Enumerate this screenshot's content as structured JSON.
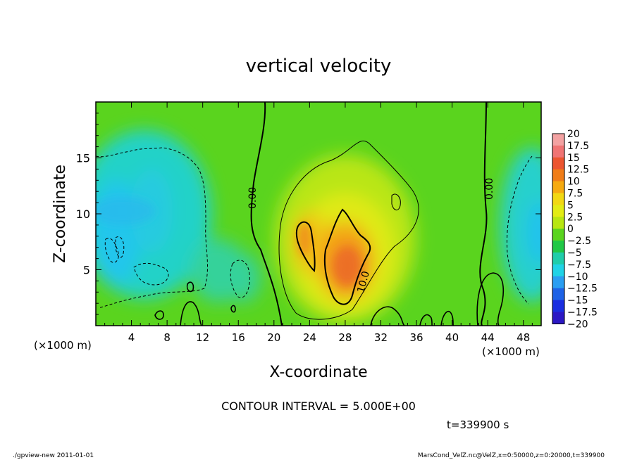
{
  "chart_data": {
    "type": "heatmap",
    "title": "vertical velocity",
    "xlabel": "X-coordinate",
    "ylabel": "Z-coordinate",
    "x_unit_label": "(×1000 m)",
    "xlim": [
      0,
      50
    ],
    "ylim": [
      0,
      20
    ],
    "x_ticks": [
      4,
      8,
      12,
      16,
      20,
      24,
      28,
      32,
      36,
      40,
      44,
      48
    ],
    "y_ticks": [
      5,
      10,
      15
    ],
    "colorbar": {
      "labels": [
        "20",
        "17.5",
        "15",
        "12.5",
        "10",
        "7.5",
        "5",
        "2.5",
        "0",
        "−2.5",
        "−5",
        "−7.5",
        "−10",
        "−12.5",
        "−15",
        "−17.5",
        "−20"
      ],
      "colors": [
        "#f3a2a2",
        "#f07474",
        "#ec5530",
        "#f07d18",
        "#f6aa10",
        "#f2d812",
        "#e3ec14",
        "#b8e612",
        "#5ad41e",
        "#20c846",
        "#1fcdaa",
        "#20d3e6",
        "#2a9ef2",
        "#1e62e6",
        "#1a2ee0",
        "#2c18c4",
        "#6a10b0"
      ]
    },
    "contour_labels": [
      "0.00",
      "0.00",
      "10.0"
    ],
    "contour_interval_text": "CONTOUR INTERVAL = 5.000E+00",
    "time_text": "t=339900  s",
    "updraft_peak": {
      "x": 28,
      "z": 6,
      "value": 12.5
    },
    "downdraft_peak": {
      "x": 2,
      "z": 8,
      "value": -7.5
    }
  },
  "footer": {
    "left": "./gpview-new    2011-01-01",
    "right": "MarsCond_VelZ.nc@VelZ,x=0:50000,z=0:20000,t=339900"
  },
  "colors": {
    "background_field": "#5ad41e"
  }
}
